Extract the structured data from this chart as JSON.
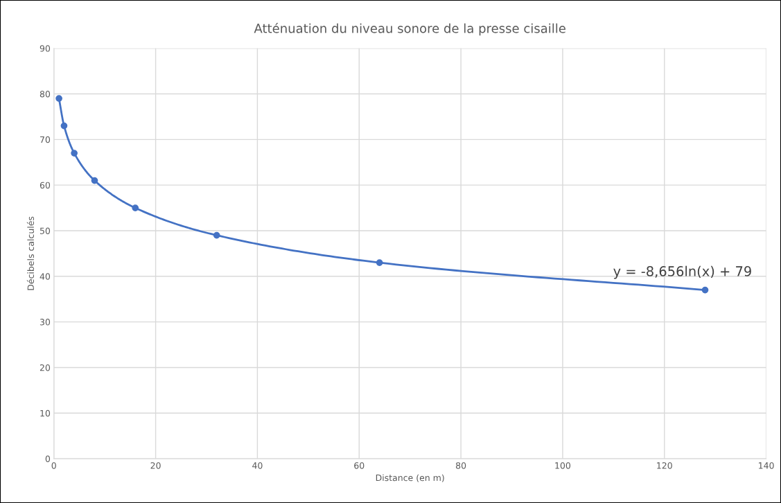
{
  "chart_data": {
    "type": "line",
    "title": "Atténuation du niveau sonore de la presse cisaille",
    "xlabel": "Distance (en m)",
    "ylabel": "Décibels calculés",
    "x": [
      1,
      2,
      4,
      8,
      16,
      32,
      64,
      128
    ],
    "series": [
      {
        "color": "#4472c4",
        "values": [
          79,
          73,
          67,
          61,
          55,
          49,
          43,
          37
        ]
      }
    ],
    "xlim": [
      0,
      140
    ],
    "xticks": [
      0,
      20,
      40,
      60,
      80,
      100,
      120,
      140
    ],
    "ylim": [
      0,
      90
    ],
    "yticks": [
      0,
      10,
      20,
      30,
      40,
      50,
      60,
      70,
      80,
      90
    ],
    "grid": true,
    "marker": "circle",
    "line_style": "solid",
    "annotations": [
      "y = -8,656ln(x) + 79"
    ]
  }
}
